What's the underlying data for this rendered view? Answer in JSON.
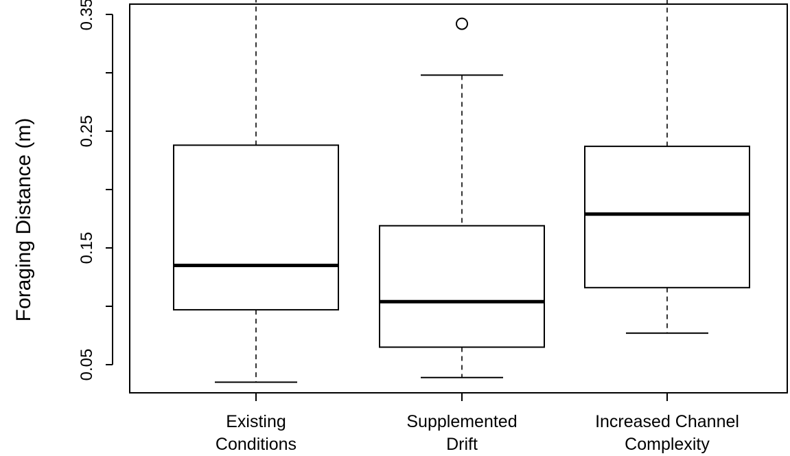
{
  "chart_data": {
    "type": "boxplot",
    "title": "",
    "xlabel": "",
    "ylabel": "Foraging Distance (m)",
    "ylim": [
      0.02,
      0.395
    ],
    "yticks": [
      0.05,
      0.1,
      0.15,
      0.2,
      0.25,
      0.3,
      0.35
    ],
    "ytick_labels": [
      "0.05",
      "",
      "0.15",
      "",
      "0.25",
      "",
      "0.35"
    ],
    "grid": false,
    "categories": [
      {
        "lines": [
          "Existing",
          "Conditions"
        ]
      },
      {
        "lines": [
          "Supplemented",
          "Drift"
        ]
      },
      {
        "lines": [
          "Increased Channel",
          "Complexity"
        ]
      }
    ],
    "boxes": [
      {
        "whisker_low": 0.035,
        "q1": 0.097,
        "median": 0.135,
        "q3": 0.238,
        "whisker_high": 0.372,
        "outliers": []
      },
      {
        "whisker_low": 0.039,
        "q1": 0.065,
        "median": 0.104,
        "q3": 0.169,
        "whisker_high": 0.298,
        "outliers": [
          0.342
        ]
      },
      {
        "whisker_low": 0.077,
        "q1": 0.116,
        "median": 0.179,
        "q3": 0.237,
        "whisker_high": 0.394,
        "outliers": []
      }
    ]
  }
}
